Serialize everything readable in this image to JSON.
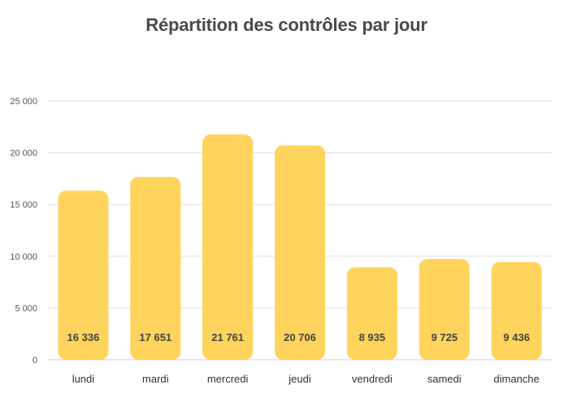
{
  "chart_data": {
    "type": "bar",
    "title": "Répartition des contrôles par jour",
    "categories": [
      "lundi",
      "mardi",
      "mercredi",
      "jeudi",
      "vendredi",
      "samedi",
      "dimanche"
    ],
    "values": [
      16336,
      17651,
      21761,
      20706,
      8935,
      9725,
      9436
    ],
    "value_labels": [
      "16 336",
      "17 651",
      "21 761",
      "20 706",
      "8 935",
      "9 725",
      "9 436"
    ],
    "y_ticks": [
      0,
      5000,
      10000,
      15000,
      20000,
      25000
    ],
    "y_tick_labels": [
      "0",
      "5 000",
      "10 000",
      "15 000",
      "20 000",
      "25 000"
    ],
    "ylim": [
      0,
      25000
    ],
    "grid": true,
    "legend": "none",
    "bar_color": "#FFD45C"
  }
}
